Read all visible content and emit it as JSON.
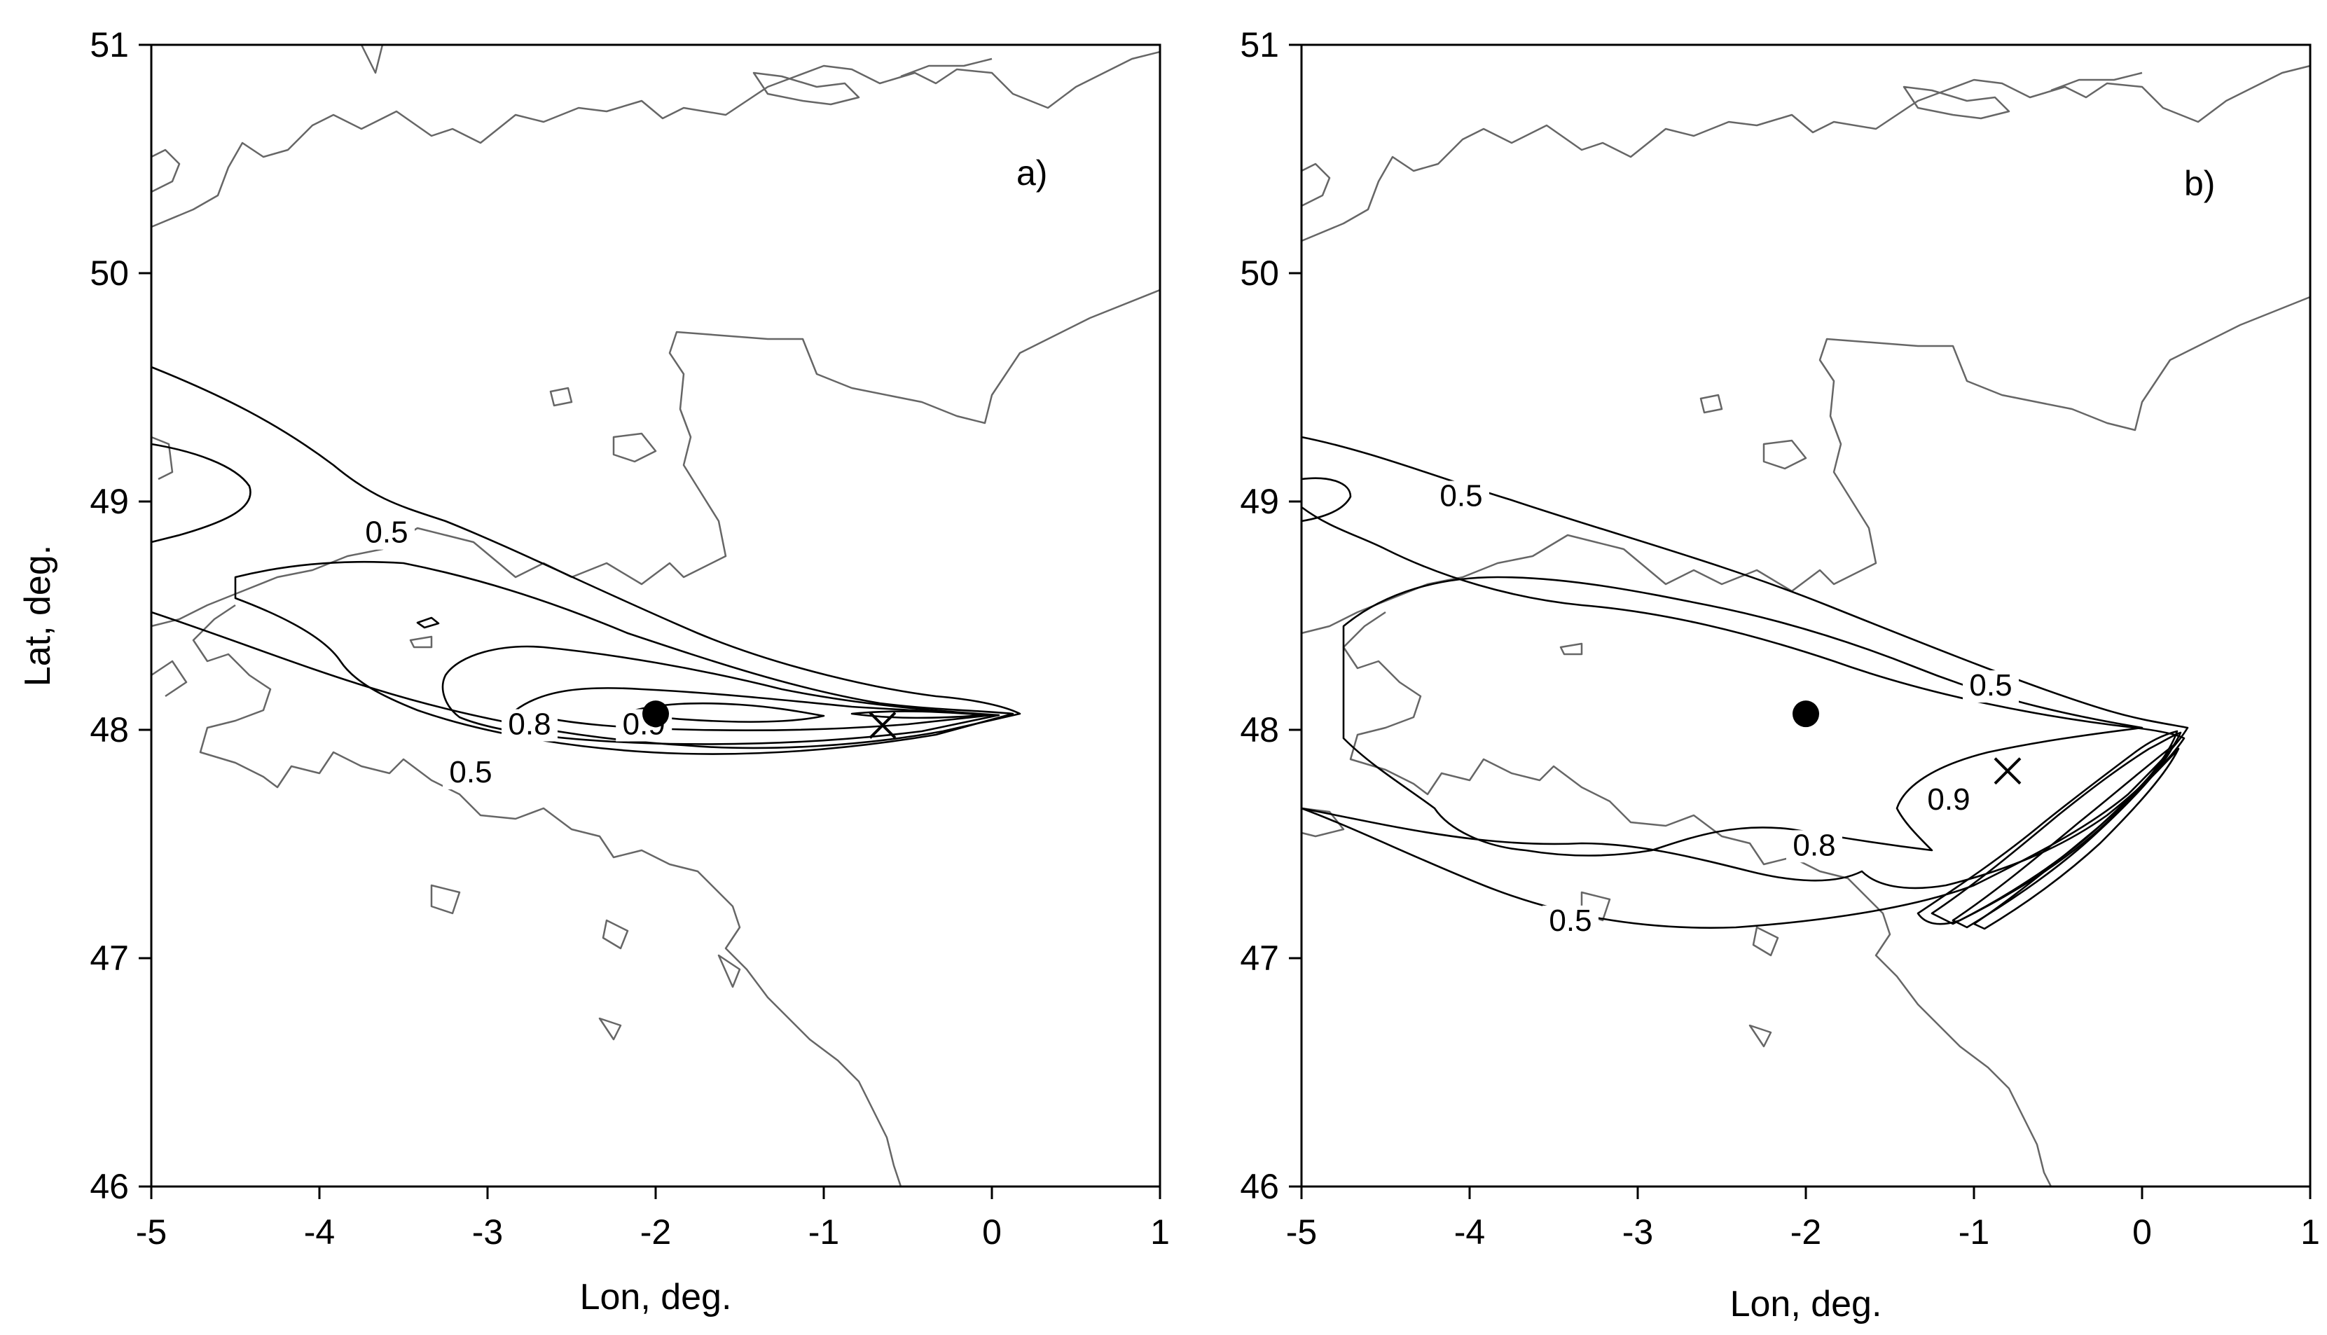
{
  "panels": [
    {
      "id": "a",
      "label": "a)",
      "xlabel": "Lon, deg.",
      "ylabel": "Lat, deg.",
      "xlim": [
        -5,
        1
      ],
      "ylim": [
        46,
        51
      ],
      "x_ticks": [
        "-5",
        "-4",
        "-3",
        "-2",
        "-1",
        "0",
        "1"
      ],
      "y_ticks": [
        "46",
        "47",
        "48",
        "49",
        "50",
        "51"
      ],
      "contour_labels": [
        {
          "text": "0.5",
          "lon": -3.6,
          "lat": 48.82
        },
        {
          "text": "0.8",
          "lon": -2.75,
          "lat": 47.98
        },
        {
          "text": "0.9",
          "lon": -2.07,
          "lat": 47.98
        },
        {
          "text": "0.5",
          "lon": -3.1,
          "lat": 47.77
        }
      ],
      "markers": [
        {
          "type": "dot",
          "lon": -2.0,
          "lat": 48.07
        },
        {
          "type": "cross",
          "lon": -0.65,
          "lat": 48.02
        }
      ]
    },
    {
      "id": "b",
      "label": "b)",
      "xlabel": "Lon, deg.",
      "ylabel": "",
      "xlim": [
        -5,
        1
      ],
      "ylim": [
        46,
        51
      ],
      "x_ticks": [
        "-5",
        "-4",
        "-3",
        "-2",
        "-1",
        "0",
        "1"
      ],
      "y_ticks": [
        "46",
        "47",
        "48",
        "49",
        "50",
        "51"
      ],
      "contour_labels": [
        {
          "text": "0.5",
          "lon": -4.05,
          "lat": 48.98
        },
        {
          "text": "0.5",
          "lon": -0.9,
          "lat": 48.15
        },
        {
          "text": "0.9",
          "lon": -1.15,
          "lat": 47.65
        },
        {
          "text": "0.8",
          "lon": -1.95,
          "lat": 47.45
        },
        {
          "text": "0.5",
          "lon": -3.4,
          "lat": 47.12
        }
      ],
      "markers": [
        {
          "type": "dot",
          "lon": -2.0,
          "lat": 48.07
        },
        {
          "type": "cross",
          "lon": -0.8,
          "lat": 47.82
        }
      ]
    }
  ]
}
